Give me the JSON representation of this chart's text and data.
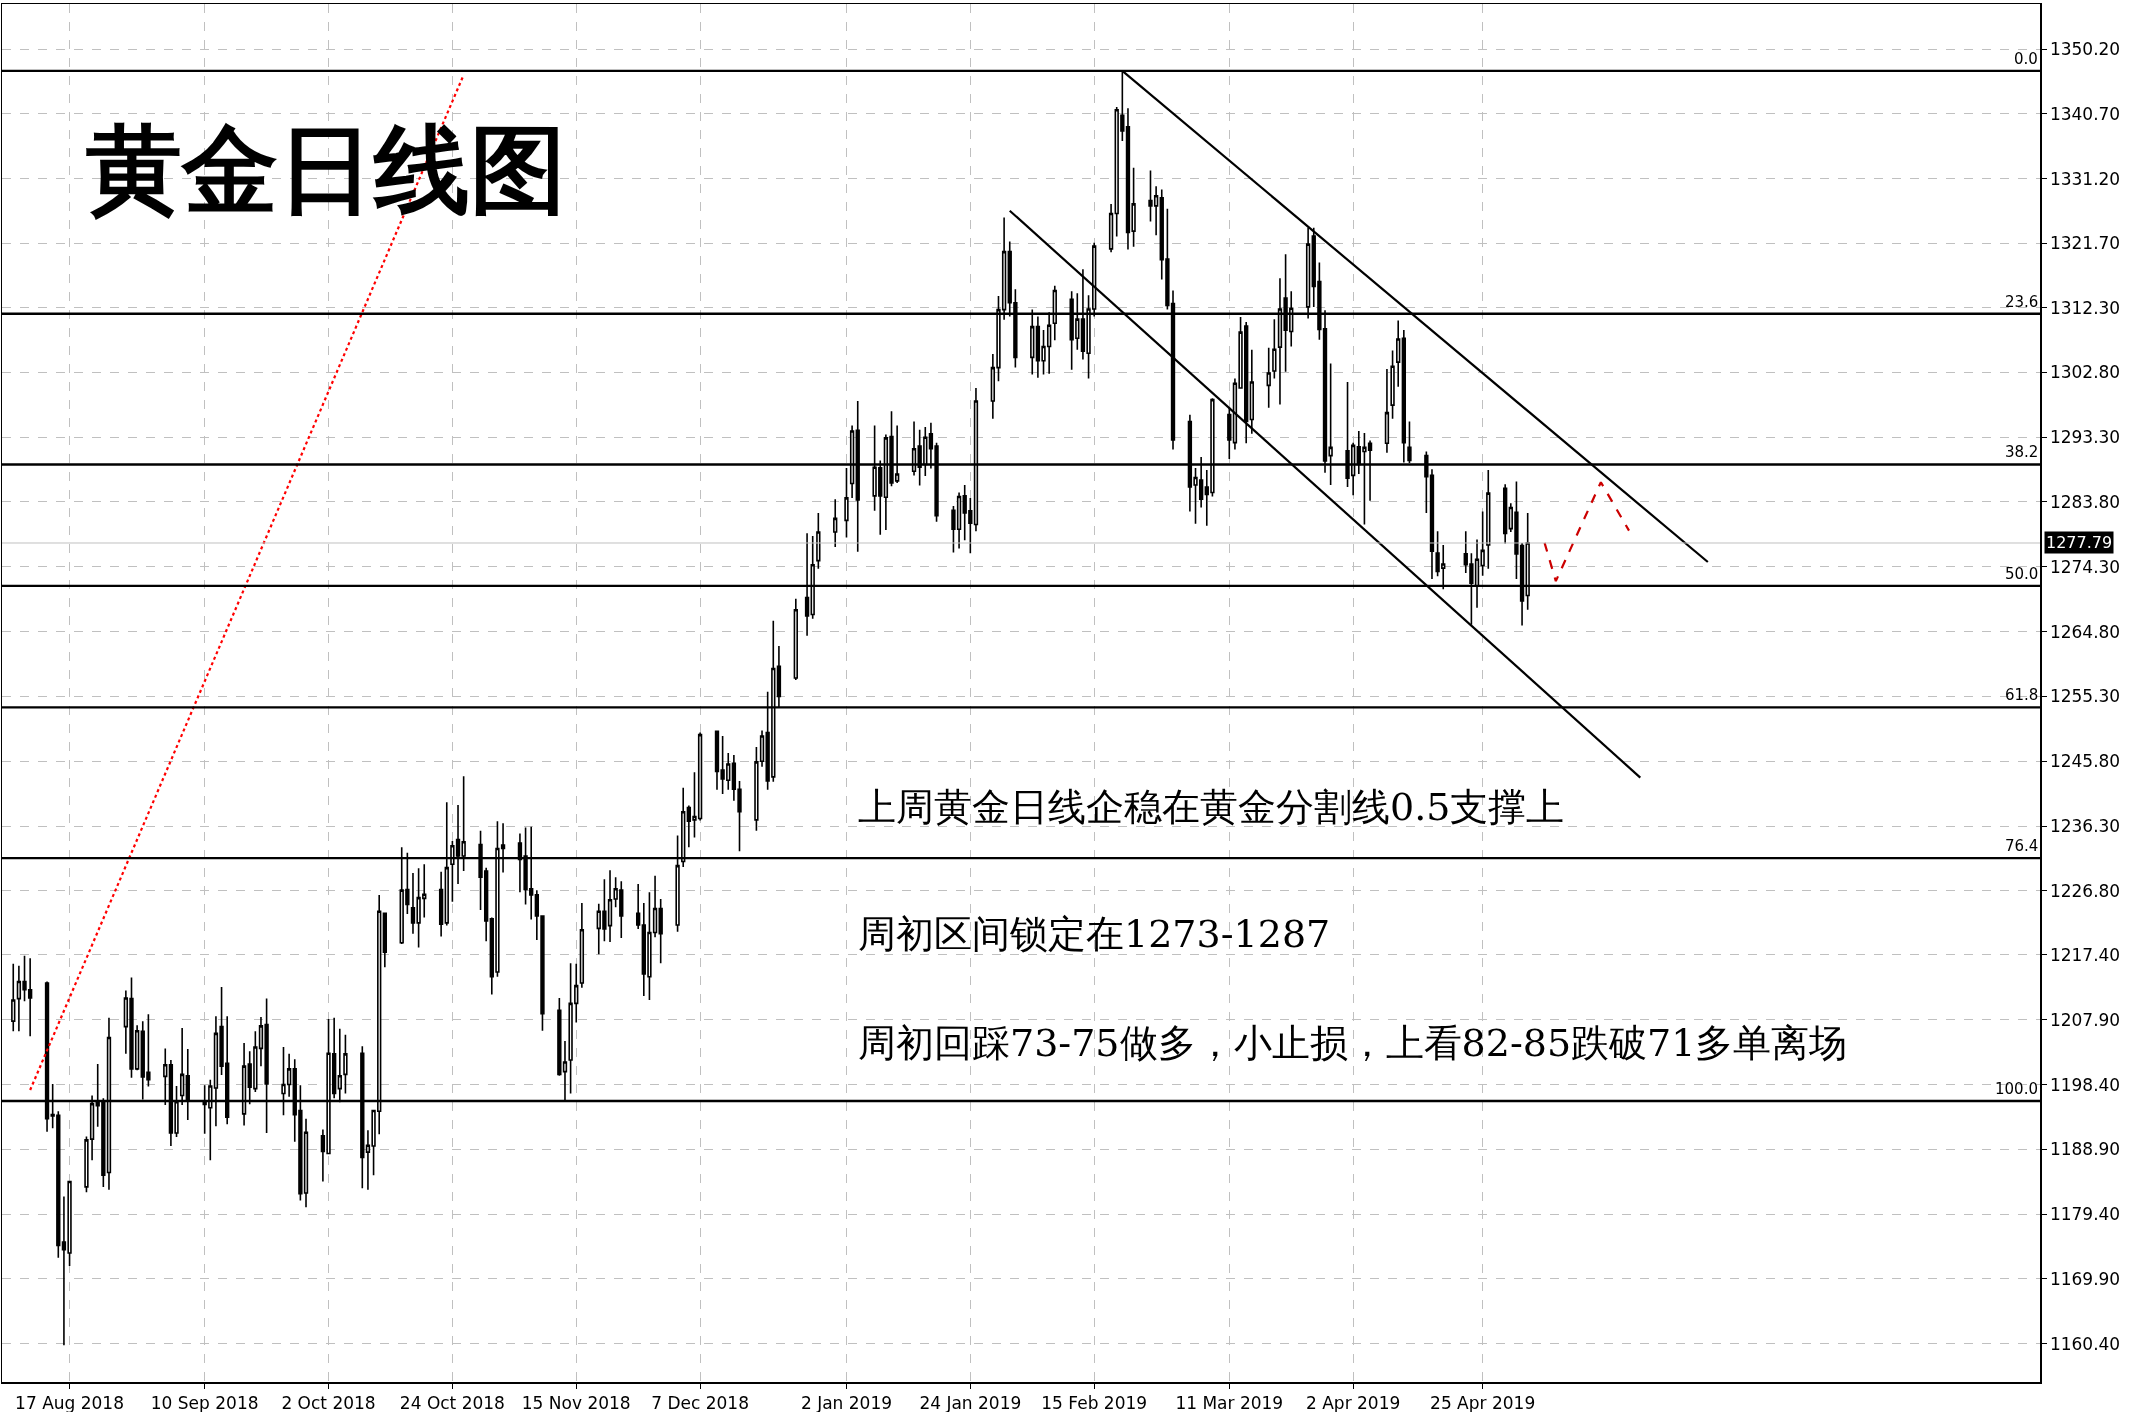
{
  "chart_data": {
    "type": "candlestick",
    "title": "黄金日线图",
    "color": "#000000",
    "x": [
      "2018-08-07",
      "2018-08-08",
      "2018-08-09",
      "2018-08-10",
      "2018-08-13",
      "2018-08-14",
      "2018-08-15",
      "2018-08-16",
      "2018-08-17",
      "2018-08-20",
      "2018-08-21",
      "2018-08-22",
      "2018-08-23",
      "2018-08-24",
      "2018-08-27",
      "2018-08-28",
      "2018-08-29",
      "2018-08-30",
      "2018-08-31",
      "2018-09-03",
      "2018-09-04",
      "2018-09-05",
      "2018-09-06",
      "2018-09-07",
      "2018-09-10",
      "2018-09-11",
      "2018-09-12",
      "2018-09-13",
      "2018-09-14",
      "2018-09-17",
      "2018-09-18",
      "2018-09-19",
      "2018-09-20",
      "2018-09-21",
      "2018-09-24",
      "2018-09-25",
      "2018-09-26",
      "2018-09-27",
      "2018-09-28",
      "2018-10-01",
      "2018-10-02",
      "2018-10-03",
      "2018-10-04",
      "2018-10-05",
      "2018-10-08",
      "2018-10-09",
      "2018-10-10",
      "2018-10-11",
      "2018-10-12",
      "2018-10-15",
      "2018-10-16",
      "2018-10-17",
      "2018-10-18",
      "2018-10-19",
      "2018-10-22",
      "2018-10-23",
      "2018-10-24",
      "2018-10-25",
      "2018-10-26",
      "2018-10-29",
      "2018-10-30",
      "2018-10-31",
      "2018-11-01",
      "2018-11-02",
      "2018-11-05",
      "2018-11-06",
      "2018-11-07",
      "2018-11-08",
      "2018-11-09",
      "2018-11-12",
      "2018-11-13",
      "2018-11-14",
      "2018-11-15",
      "2018-11-16",
      "2018-11-19",
      "2018-11-20",
      "2018-11-21",
      "2018-11-22",
      "2018-11-23",
      "2018-11-26",
      "2018-11-27",
      "2018-11-28",
      "2018-11-29",
      "2018-11-30",
      "2018-12-03",
      "2018-12-04",
      "2018-12-05",
      "2018-12-06",
      "2018-12-07",
      "2018-12-10",
      "2018-12-11",
      "2018-12-12",
      "2018-12-13",
      "2018-12-14",
      "2018-12-17",
      "2018-12-18",
      "2018-12-19",
      "2018-12-20",
      "2018-12-21",
      "2018-12-24",
      "2018-12-26",
      "2018-12-27",
      "2018-12-28",
      "2018-12-31",
      "2019-01-02",
      "2019-01-03",
      "2019-01-04",
      "2019-01-07",
      "2019-01-08",
      "2019-01-09",
      "2019-01-10",
      "2019-01-11",
      "2019-01-14",
      "2019-01-15",
      "2019-01-16",
      "2019-01-17",
      "2019-01-18",
      "2019-01-21",
      "2019-01-22",
      "2019-01-23",
      "2019-01-24",
      "2019-01-25",
      "2019-01-28",
      "2019-01-29",
      "2019-01-30",
      "2019-01-31",
      "2019-02-01",
      "2019-02-04",
      "2019-02-05",
      "2019-02-06",
      "2019-02-07",
      "2019-02-08",
      "2019-02-11",
      "2019-02-12",
      "2019-02-13",
      "2019-02-14",
      "2019-02-15",
      "2019-02-18",
      "2019-02-19",
      "2019-02-20",
      "2019-02-21",
      "2019-02-22",
      "2019-02-25",
      "2019-02-26",
      "2019-02-27",
      "2019-02-28",
      "2019-03-01",
      "2019-03-04",
      "2019-03-05",
      "2019-03-06",
      "2019-03-07",
      "2019-03-08",
      "2019-03-11",
      "2019-03-12",
      "2019-03-13",
      "2019-03-14",
      "2019-03-15",
      "2019-03-18",
      "2019-03-19",
      "2019-03-20",
      "2019-03-21",
      "2019-03-22",
      "2019-03-25",
      "2019-03-26",
      "2019-03-27",
      "2019-03-28",
      "2019-03-29",
      "2019-04-01",
      "2019-04-02",
      "2019-04-03",
      "2019-04-04",
      "2019-04-05",
      "2019-04-08",
      "2019-04-09",
      "2019-04-10",
      "2019-04-11",
      "2019-04-12",
      "2019-04-15",
      "2019-04-16",
      "2019-04-17",
      "2019-04-18",
      "2019-04-22",
      "2019-04-23",
      "2019-04-24",
      "2019-04-25",
      "2019-04-26",
      "2019-04-29",
      "2019-04-30",
      "2019-05-01",
      "2019-05-02",
      "2019-05-03"
    ],
    "ohlc": [
      [
        1207.7,
        1216.1,
        1206.2,
        1210.8
      ],
      [
        1211.0,
        1215.8,
        1206.2,
        1213.5
      ],
      [
        1213.5,
        1217.3,
        1210.6,
        1212.3
      ],
      [
        1212.3,
        1216.9,
        1205.5,
        1211.1
      ],
      [
        1213.3,
        1213.5,
        1191.5,
        1193.4
      ],
      [
        1194.0,
        1198.5,
        1192.0,
        1193.8
      ],
      [
        1193.9,
        1194.5,
        1173.0,
        1174.8
      ],
      [
        1175.3,
        1182.0,
        1160.2,
        1174.2
      ],
      [
        1173.7,
        1184.2,
        1171.8,
        1184.2
      ],
      [
        1183.4,
        1190.8,
        1182.6,
        1190.3
      ],
      [
        1190.4,
        1196.8,
        1187.3,
        1195.6
      ],
      [
        1195.9,
        1201.4,
        1192.2,
        1195.3
      ],
      [
        1195.9,
        1196.4,
        1183.4,
        1185.1
      ],
      [
        1185.5,
        1208.2,
        1183.0,
        1205.3
      ],
      [
        1206.9,
        1212.2,
        1202.9,
        1211.1
      ],
      [
        1211.0,
        1214.1,
        1199.4,
        1200.7
      ],
      [
        1200.7,
        1207.1,
        1200.5,
        1206.3
      ],
      [
        1206.2,
        1207.7,
        1196.2,
        1199.5
      ],
      [
        1200.2,
        1208.7,
        1198.1,
        1199.1
      ],
      [
        1199.6,
        1203.7,
        1195.4,
        1201.3
      ],
      [
        1201.3,
        1202.0,
        1189.4,
        1191.3
      ],
      [
        1191.3,
        1198.2,
        1190.7,
        1195.9
      ],
      [
        1196.8,
        1206.7,
        1195.4,
        1199.9
      ],
      [
        1199.7,
        1203.6,
        1193.2,
        1196.1
      ],
      [
        1196.0,
        1198.3,
        1191.2,
        1195.5
      ],
      [
        1195.0,
        1199.1,
        1187.3,
        1198.2
      ],
      [
        1197.9,
        1208.4,
        1192.3,
        1205.9
      ],
      [
        1206.9,
        1212.7,
        1199.8,
        1201.1
      ],
      [
        1201.5,
        1208.4,
        1192.6,
        1193.6
      ],
      [
        1194.1,
        1204.5,
        1192.4,
        1201.1
      ],
      [
        1201.4,
        1203.3,
        1195.5,
        1198.0
      ],
      [
        1197.8,
        1206.2,
        1197.3,
        1203.9
      ],
      [
        1203.7,
        1208.3,
        1201.1,
        1207.0
      ],
      [
        1207.2,
        1211.0,
        1191.3,
        1198.5
      ],
      [
        1197.1,
        1203.9,
        1193.9,
        1198.4
      ],
      [
        1198.4,
        1202.9,
        1196.6,
        1200.7
      ],
      [
        1200.7,
        1202.1,
        1190.0,
        1194.0
      ],
      [
        1194.6,
        1198.3,
        1181.4,
        1182.4
      ],
      [
        1182.5,
        1193.4,
        1180.4,
        1191.4
      ],
      [
        1190.9,
        1191.8,
        1184.2,
        1188.6
      ],
      [
        1188.3,
        1208.0,
        1188.2,
        1203.0
      ],
      [
        1202.9,
        1208.2,
        1196.4,
        1197.1
      ],
      [
        1197.8,
        1206.6,
        1195.8,
        1199.7
      ],
      [
        1199.9,
        1205.7,
        1197.1,
        1202.9
      ],
      [
        1203.0,
        1204.0,
        1183.2,
        1187.7
      ],
      [
        1188.5,
        1191.7,
        1183.0,
        1189.5
      ],
      [
        1189.4,
        1194.7,
        1185.1,
        1194.6
      ],
      [
        1194.5,
        1226.2,
        1191.1,
        1223.8
      ],
      [
        1223.5,
        1223.5,
        1215.6,
        1217.8
      ],
      [
        1219.2,
        1233.2,
        1219.0,
        1226.9
      ],
      [
        1227.0,
        1232.4,
        1223.4,
        1224.8
      ],
      [
        1224.3,
        1229.4,
        1220.5,
        1222.1
      ],
      [
        1222.1,
        1230.1,
        1218.5,
        1225.8
      ],
      [
        1225.7,
        1230.7,
        1222.9,
        1226.3
      ],
      [
        1227.0,
        1229.6,
        1220.1,
        1221.9
      ],
      [
        1222.1,
        1239.8,
        1221.7,
        1230.2
      ],
      [
        1230.7,
        1234.1,
        1225.2,
        1233.4
      ],
      [
        1234.3,
        1239.4,
        1227.8,
        1231.9
      ],
      [
        1231.9,
        1243.6,
        1229.7,
        1234.0
      ],
      [
        1233.6,
        1235.6,
        1224.0,
        1228.8
      ],
      [
        1229.7,
        1230.2,
        1219.4,
        1222.4
      ],
      [
        1222.7,
        1222.9,
        1211.6,
        1214.2
      ],
      [
        1214.9,
        1237.0,
        1214.2,
        1233.0
      ],
      [
        1233.5,
        1236.7,
        1229.5,
        1233.0
      ],
      [
        1233.8,
        1235.2,
        1226.6,
        1231.4
      ],
      [
        1231.9,
        1236.1,
        1224.8,
        1227.0
      ],
      [
        1227.1,
        1236.2,
        1222.6,
        1226.2
      ],
      [
        1226.2,
        1226.9,
        1219.6,
        1223.1
      ],
      [
        1223.1,
        1223.2,
        1206.3,
        1208.8
      ],
      [
        1209.3,
        1211.1,
        1199.7,
        1199.9
      ],
      [
        1200.3,
        1204.8,
        1195.9,
        1201.7
      ],
      [
        1202.0,
        1216.2,
        1197.1,
        1210.3
      ],
      [
        1210.3,
        1216.1,
        1207.5,
        1212.9
      ],
      [
        1213.3,
        1225.0,
        1212.6,
        1221.1
      ],
      [
        1221.3,
        1224.9,
        1217.5,
        1223.8
      ],
      [
        1223.8,
        1228.5,
        1219.4,
        1221.2
      ],
      [
        1221.7,
        1229.8,
        1219.3,
        1225.5
      ],
      [
        1225.6,
        1228.8,
        1224.4,
        1227.1
      ],
      [
        1226.9,
        1228.2,
        1219.9,
        1223.1
      ],
      [
        1223.5,
        1227.8,
        1221.2,
        1221.8
      ],
      [
        1221.8,
        1225.0,
        1211.4,
        1214.6
      ],
      [
        1214.2,
        1226.6,
        1210.8,
        1220.7
      ],
      [
        1220.7,
        1229.0,
        1220.0,
        1224.2
      ],
      [
        1224.2,
        1225.6,
        1216.2,
        1220.5
      ],
      [
        1221.8,
        1234.9,
        1220.8,
        1230.5
      ],
      [
        1231.1,
        1241.9,
        1230.3,
        1238.4
      ],
      [
        1239.0,
        1239.3,
        1233.2,
        1237.0
      ],
      [
        1237.2,
        1244.2,
        1234.6,
        1237.7
      ],
      [
        1237.4,
        1250.0,
        1237.1,
        1249.7
      ],
      [
        1250.2,
        1250.3,
        1241.6,
        1244.3
      ],
      [
        1244.5,
        1249.5,
        1241.0,
        1243.2
      ],
      [
        1243.0,
        1247.0,
        1241.6,
        1245.4
      ],
      [
        1245.5,
        1246.7,
        1240.0,
        1241.7
      ],
      [
        1241.7,
        1242.9,
        1232.6,
        1238.4
      ],
      [
        1237.2,
        1247.9,
        1235.6,
        1245.7
      ],
      [
        1245.8,
        1250.3,
        1245.0,
        1249.5
      ],
      [
        1250.0,
        1256.0,
        1241.6,
        1242.9
      ],
      [
        1243.5,
        1266.4,
        1242.8,
        1259.4
      ],
      [
        1259.7,
        1262.7,
        1253.7,
        1255.3
      ],
      [
        1258.0,
        1269.6,
        1257.7,
        1268.0
      ],
      [
        1269.8,
        1279.2,
        1264.2,
        1267.1
      ],
      [
        1267.3,
        1278.8,
        1266.7,
        1274.6
      ],
      [
        1275.2,
        1282.2,
        1274.0,
        1279.4
      ],
      [
        1279.4,
        1284.2,
        1277.2,
        1281.4
      ],
      [
        1281.1,
        1288.8,
        1278.6,
        1284.4
      ],
      [
        1286.5,
        1295.0,
        1284.4,
        1294.2
      ],
      [
        1294.3,
        1298.6,
        1276.5,
        1284.1
      ],
      [
        1284.7,
        1295.0,
        1282.5,
        1288.9
      ],
      [
        1288.8,
        1289.9,
        1279.0,
        1284.7
      ],
      [
        1284.5,
        1293.7,
        1279.7,
        1293.2
      ],
      [
        1293.4,
        1297.1,
        1286.1,
        1286.6
      ],
      [
        1286.9,
        1295.0,
        1286.6,
        1287.9
      ],
      [
        1288.3,
        1295.6,
        1287.7,
        1291.6
      ],
      [
        1292.0,
        1294.4,
        1286.2,
        1288.9
      ],
      [
        1289.3,
        1294.8,
        1287.6,
        1293.3
      ],
      [
        1293.8,
        1295.4,
        1288.7,
        1291.6
      ],
      [
        1292.0,
        1292.5,
        1280.9,
        1281.8
      ],
      [
        1282.6,
        1283.2,
        1276.4,
        1279.8
      ],
      [
        1279.8,
        1285.2,
        1277.0,
        1284.6
      ],
      [
        1284.7,
        1286.3,
        1278.2,
        1282.2
      ],
      [
        1282.5,
        1284.4,
        1276.3,
        1280.7
      ],
      [
        1280.5,
        1300.5,
        1279.5,
        1298.6
      ],
      [
        1298.6,
        1305.5,
        1296.0,
        1303.5
      ],
      [
        1303.5,
        1314.0,
        1301.5,
        1312.0
      ],
      [
        1312.0,
        1325.5,
        1310.5,
        1320.5
      ],
      [
        1320.5,
        1322.0,
        1311.0,
        1313.0
      ],
      [
        1313.0,
        1315.0,
        1303.5,
        1305.0
      ],
      [
        1305.0,
        1312.0,
        1302.5,
        1309.5
      ],
      [
        1309.5,
        1311.0,
        1302.0,
        1304.5
      ],
      [
        1304.5,
        1309.0,
        1302.5,
        1306.6
      ],
      [
        1306.6,
        1311.6,
        1302.6,
        1309.7
      ],
      [
        1310.0,
        1315.5,
        1307.5,
        1314.8
      ],
      [
        1313.5,
        1314.7,
        1303.2,
        1307.6
      ],
      [
        1307.8,
        1314.4,
        1306.1,
        1310.6
      ],
      [
        1310.6,
        1317.9,
        1304.7,
        1305.9
      ],
      [
        1305.6,
        1314.1,
        1301.9,
        1312.1
      ],
      [
        1312.1,
        1321.8,
        1311.0,
        1321.3
      ],
      [
        1320.9,
        1327.5,
        1320.4,
        1326.1
      ],
      [
        1326.1,
        1341.7,
        1322.7,
        1341.3
      ],
      [
        1340.5,
        1347.0,
        1336.7,
        1338.2
      ],
      [
        1338.8,
        1341.5,
        1320.8,
        1323.3
      ],
      [
        1323.5,
        1332.8,
        1321.2,
        1327.5
      ],
      [
        1328.0,
        1332.4,
        1324.9,
        1327.2
      ],
      [
        1327.2,
        1330.1,
        1322.9,
        1328.7
      ],
      [
        1328.4,
        1329.6,
        1316.4,
        1319.3
      ],
      [
        1319.4,
        1326.8,
        1312.0,
        1312.6
      ],
      [
        1312.9,
        1314.8,
        1291.5,
        1292.9
      ],
      [
        1295.6,
        1296.6,
        1282.4,
        1286.0
      ],
      [
        1286.3,
        1288.8,
        1280.6,
        1287.4
      ],
      [
        1287.0,
        1290.4,
        1283.0,
        1284.2
      ],
      [
        1286.0,
        1288.5,
        1280.3,
        1284.9
      ],
      [
        1285.2,
        1299.0,
        1284.6,
        1298.8
      ],
      [
        1296.6,
        1297.7,
        1290.1,
        1292.9
      ],
      [
        1292.5,
        1301.9,
        1291.5,
        1301.2
      ],
      [
        1300.5,
        1310.9,
        1300.4,
        1308.7
      ],
      [
        1309.6,
        1310.2,
        1292.4,
        1295.6
      ],
      [
        1295.9,
        1306.1,
        1293.8,
        1301.4
      ],
      [
        1300.9,
        1306.4,
        1297.6,
        1302.7
      ],
      [
        1303.0,
        1310.6,
        1301.9,
        1306.2
      ],
      [
        1306.5,
        1316.6,
        1298.1,
        1312.1
      ],
      [
        1313.7,
        1320.1,
        1302.9,
        1309.0
      ],
      [
        1308.8,
        1314.7,
        1306.6,
        1312.2
      ],
      [
        1312.4,
        1324.0,
        1310.7,
        1321.6
      ],
      [
        1322.8,
        1324.0,
        1312.4,
        1315.4
      ],
      [
        1316.1,
        1318.9,
        1307.6,
        1309.1
      ],
      [
        1309.2,
        1311.9,
        1288.1,
        1289.8
      ],
      [
        1290.6,
        1304.1,
        1286.3,
        1291.8
      ],
      [
        1291.3,
        1301.4,
        1286.0,
        1287.3
      ],
      [
        1287.7,
        1292.5,
        1284.8,
        1292.1
      ],
      [
        1291.9,
        1294.2,
        1287.9,
        1289.3
      ],
      [
        1291.2,
        1293.9,
        1280.5,
        1291.8
      ],
      [
        1292.4,
        1292.8,
        1284.0,
        1291.4
      ],
      [
        1292.4,
        1303.3,
        1291.0,
        1296.9
      ],
      [
        1298.0,
        1306.0,
        1296.0,
        1303.7
      ],
      [
        1304.3,
        1310.4,
        1300.7,
        1307.7
      ],
      [
        1307.8,
        1309.0,
        1289.6,
        1292.5
      ],
      [
        1291.8,
        1295.6,
        1289.5,
        1289.9
      ],
      [
        1290.6,
        1291.2,
        1282.2,
        1287.5
      ],
      [
        1287.7,
        1288.6,
        1272.5,
        1276.6
      ],
      [
        1276.3,
        1279.5,
        1272.9,
        1273.6
      ],
      [
        1274.1,
        1277.5,
        1271.0,
        1274.7
      ],
      [
        1276.2,
        1279.5,
        1273.4,
        1274.6
      ],
      [
        1274.7,
        1276.3,
        1265.8,
        1271.9
      ],
      [
        1271.5,
        1278.3,
        1268.3,
        1275.4
      ],
      [
        1274.5,
        1282.4,
        1273.0,
        1276.7
      ],
      [
        1277.5,
        1288.5,
        1274.0,
        1285.1
      ],
      [
        1285.8,
        1286.4,
        1277.7,
        1279.2
      ],
      [
        1279.9,
        1283.6,
        1279.4,
        1283.0
      ],
      [
        1282.3,
        1286.8,
        1272.5,
        1276.2
      ],
      [
        1277.4,
        1277.8,
        1265.7,
        1269.3
      ],
      [
        1270.1,
        1282.2,
        1268.0,
        1277.79
      ]
    ],
    "series": [
      {
        "type": "line",
        "color": "#000000",
        "x": [
          "2019-02-20",
          "2019-06-04"
        ],
        "values": [
          1347.0,
          1275.0
        ]
      },
      {
        "type": "line",
        "color": "#000000",
        "x": [
          "2019-01-31",
          "2019-05-23"
        ],
        "values": [
          1326.5,
          1243.4
        ]
      },
      {
        "type": "line",
        "color": "#ff0000",
        "line_style": "dotted",
        "x": [
          "2018-08-10",
          "2018-10-26"
        ],
        "values": [
          1197.6,
          1346.4
        ]
      },
      {
        "type": "line",
        "color": "#cc0000",
        "line_style": "dashed",
        "x": [
          "2019-05-06",
          "2019-05-08",
          "2019-05-16",
          "2019-05-21"
        ],
        "values": [
          1277.8,
          1272.2,
          1286.7,
          1279.6
        ]
      }
    ],
    "ref_lines": [
      {
        "axis": "y",
        "value": 1347.0,
        "color": "#000000"
      },
      {
        "axis": "y",
        "value": 1311.4,
        "color": "#000000"
      },
      {
        "axis": "y",
        "value": 1289.3,
        "color": "#000000"
      },
      {
        "axis": "y",
        "value": 1271.5,
        "color": "#000000"
      },
      {
        "axis": "y",
        "value": 1253.7,
        "color": "#000000"
      },
      {
        "axis": "y",
        "value": 1231.6,
        "color": "#000000"
      },
      {
        "axis": "y",
        "value": 1196.0,
        "color": "#000000"
      },
      {
        "axis": "y",
        "value": 1277.79,
        "label": "1277.79",
        "color": "#c0c0c0"
      }
    ],
    "annotations": [
      "上周黄金日线企稳在黄金分割线0.5支撑上",
      "周初区间锁定在1273-1287",
      "周初回踩73-75做多，小止损，上看82-85跌破71多单离场",
      {
        "text": "0.0",
        "y": 1347.0
      },
      {
        "text": "23.6",
        "y": 1311.4
      },
      {
        "text": "38.2",
        "y": 1289.3
      },
      {
        "text": "50.0",
        "y": 1271.5
      },
      {
        "text": "61.8",
        "y": 1253.7
      },
      {
        "text": "76.4",
        "y": 1231.6
      },
      {
        "text": "100.0",
        "y": 1196.0
      }
    ],
    "xlim": [
      "2018-08-05",
      "2019-08-02"
    ],
    "xticks": [
      {
        "value": "2018-08-17",
        "label": "17 Aug 2018"
      },
      {
        "value": "2018-09-10",
        "label": "10 Sep 2018"
      },
      {
        "value": "2018-10-02",
        "label": "2 Oct 2018"
      },
      {
        "value": "2018-10-24",
        "label": "24 Oct 2018"
      },
      {
        "value": "2018-11-15",
        "label": "15 Nov 2018"
      },
      {
        "value": "2018-12-07",
        "label": "7 Dec 2018"
      },
      {
        "value": "2019-01-02",
        "label": "2 Jan 2019"
      },
      {
        "value": "2019-01-24",
        "label": "24 Jan 2019"
      },
      {
        "value": "2019-02-15",
        "label": "15 Feb 2019"
      },
      {
        "value": "2019-03-11",
        "label": "11 Mar 2019"
      },
      {
        "value": "2019-04-02",
        "label": "2 Apr 2019"
      },
      {
        "value": "2019-04-25",
        "label": "25 Apr 2019"
      }
    ],
    "ylim": [
      1154.8,
      1356.8
    ],
    "yticks": [
      {
        "value": 1160.4,
        "label": "1160.40"
      },
      {
        "value": 1169.9,
        "label": "1169.90"
      },
      {
        "value": 1179.4,
        "label": "1179.40"
      },
      {
        "value": 1188.9,
        "label": "1188.90"
      },
      {
        "value": 1198.4,
        "label": "1198.40"
      },
      {
        "value": 1207.9,
        "label": "1207.90"
      },
      {
        "value": 1217.4,
        "label": "1217.40"
      },
      {
        "value": 1226.8,
        "label": "1226.80"
      },
      {
        "value": 1236.3,
        "label": "1236.30"
      },
      {
        "value": 1245.8,
        "label": "1245.80"
      },
      {
        "value": 1255.3,
        "label": "1255.30"
      },
      {
        "value": 1264.8,
        "label": "1264.80"
      },
      {
        "value": 1274.3,
        "label": "1274.30"
      },
      {
        "value": 1283.8,
        "label": "1283.80"
      },
      {
        "value": 1293.3,
        "label": "1293.30"
      },
      {
        "value": 1302.8,
        "label": "1302.80"
      },
      {
        "value": 1312.3,
        "label": "1312.30"
      },
      {
        "value": 1321.7,
        "label": "1321.70"
      },
      {
        "value": 1331.2,
        "label": "1331.20"
      },
      {
        "value": 1340.7,
        "label": "1340.70"
      },
      {
        "value": 1350.2,
        "label": "1350.20"
      }
    ],
    "grid": true,
    "marker": "none"
  }
}
